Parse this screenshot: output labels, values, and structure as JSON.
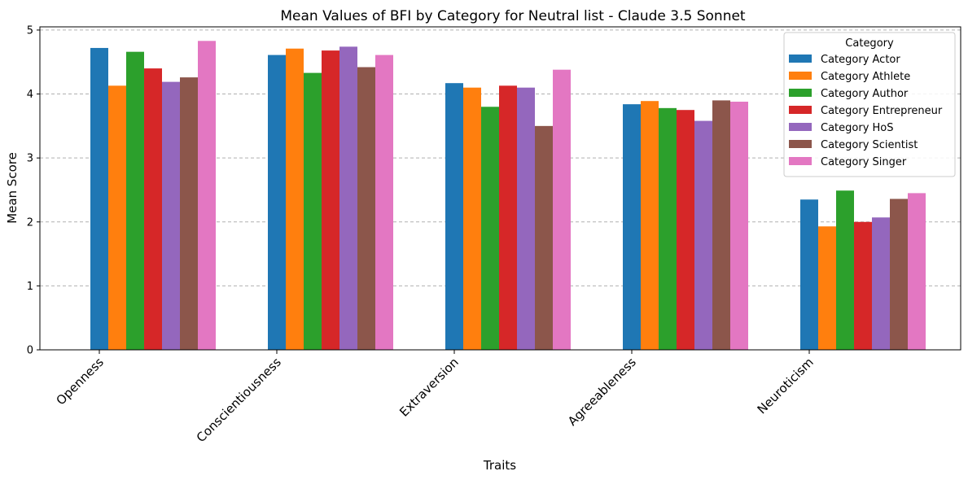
{
  "chart_data": {
    "type": "bar",
    "title": "Mean Values of BFI by Category for Neutral list - Claude 3.5 Sonnet",
    "xlabel": "Traits",
    "ylabel": "Mean Score",
    "ylim": [
      0,
      5.05
    ],
    "yticks": [
      0,
      1,
      2,
      3,
      4,
      5
    ],
    "grid": "y-dashed",
    "legend_title": "Category",
    "legend_position": "top-right",
    "categories": [
      "Openness",
      "Conscientiousness",
      "Extraversion",
      "Agreeableness",
      "Neuroticism"
    ],
    "series": [
      {
        "name": "Category Actor",
        "color": "#1f77b4",
        "values": [
          4.72,
          4.61,
          4.17,
          3.84,
          2.35
        ]
      },
      {
        "name": "Category Athlete",
        "color": "#ff7f0e",
        "values": [
          4.13,
          4.71,
          4.1,
          3.89,
          1.93
        ]
      },
      {
        "name": "Category Author",
        "color": "#2ca02c",
        "values": [
          4.66,
          4.33,
          3.8,
          3.78,
          2.49
        ]
      },
      {
        "name": "Category Entrepreneur",
        "color": "#d62728",
        "values": [
          4.4,
          4.68,
          4.13,
          3.75,
          2.0
        ]
      },
      {
        "name": "Category HoS",
        "color": "#9467bd",
        "values": [
          4.19,
          4.74,
          4.1,
          3.58,
          2.07
        ]
      },
      {
        "name": "Category Scientist",
        "color": "#8c564b",
        "values": [
          4.26,
          4.42,
          3.5,
          3.9,
          2.36
        ]
      },
      {
        "name": "Category Singer",
        "color": "#e377c2",
        "values": [
          4.83,
          4.61,
          4.38,
          3.88,
          2.45
        ]
      }
    ]
  }
}
